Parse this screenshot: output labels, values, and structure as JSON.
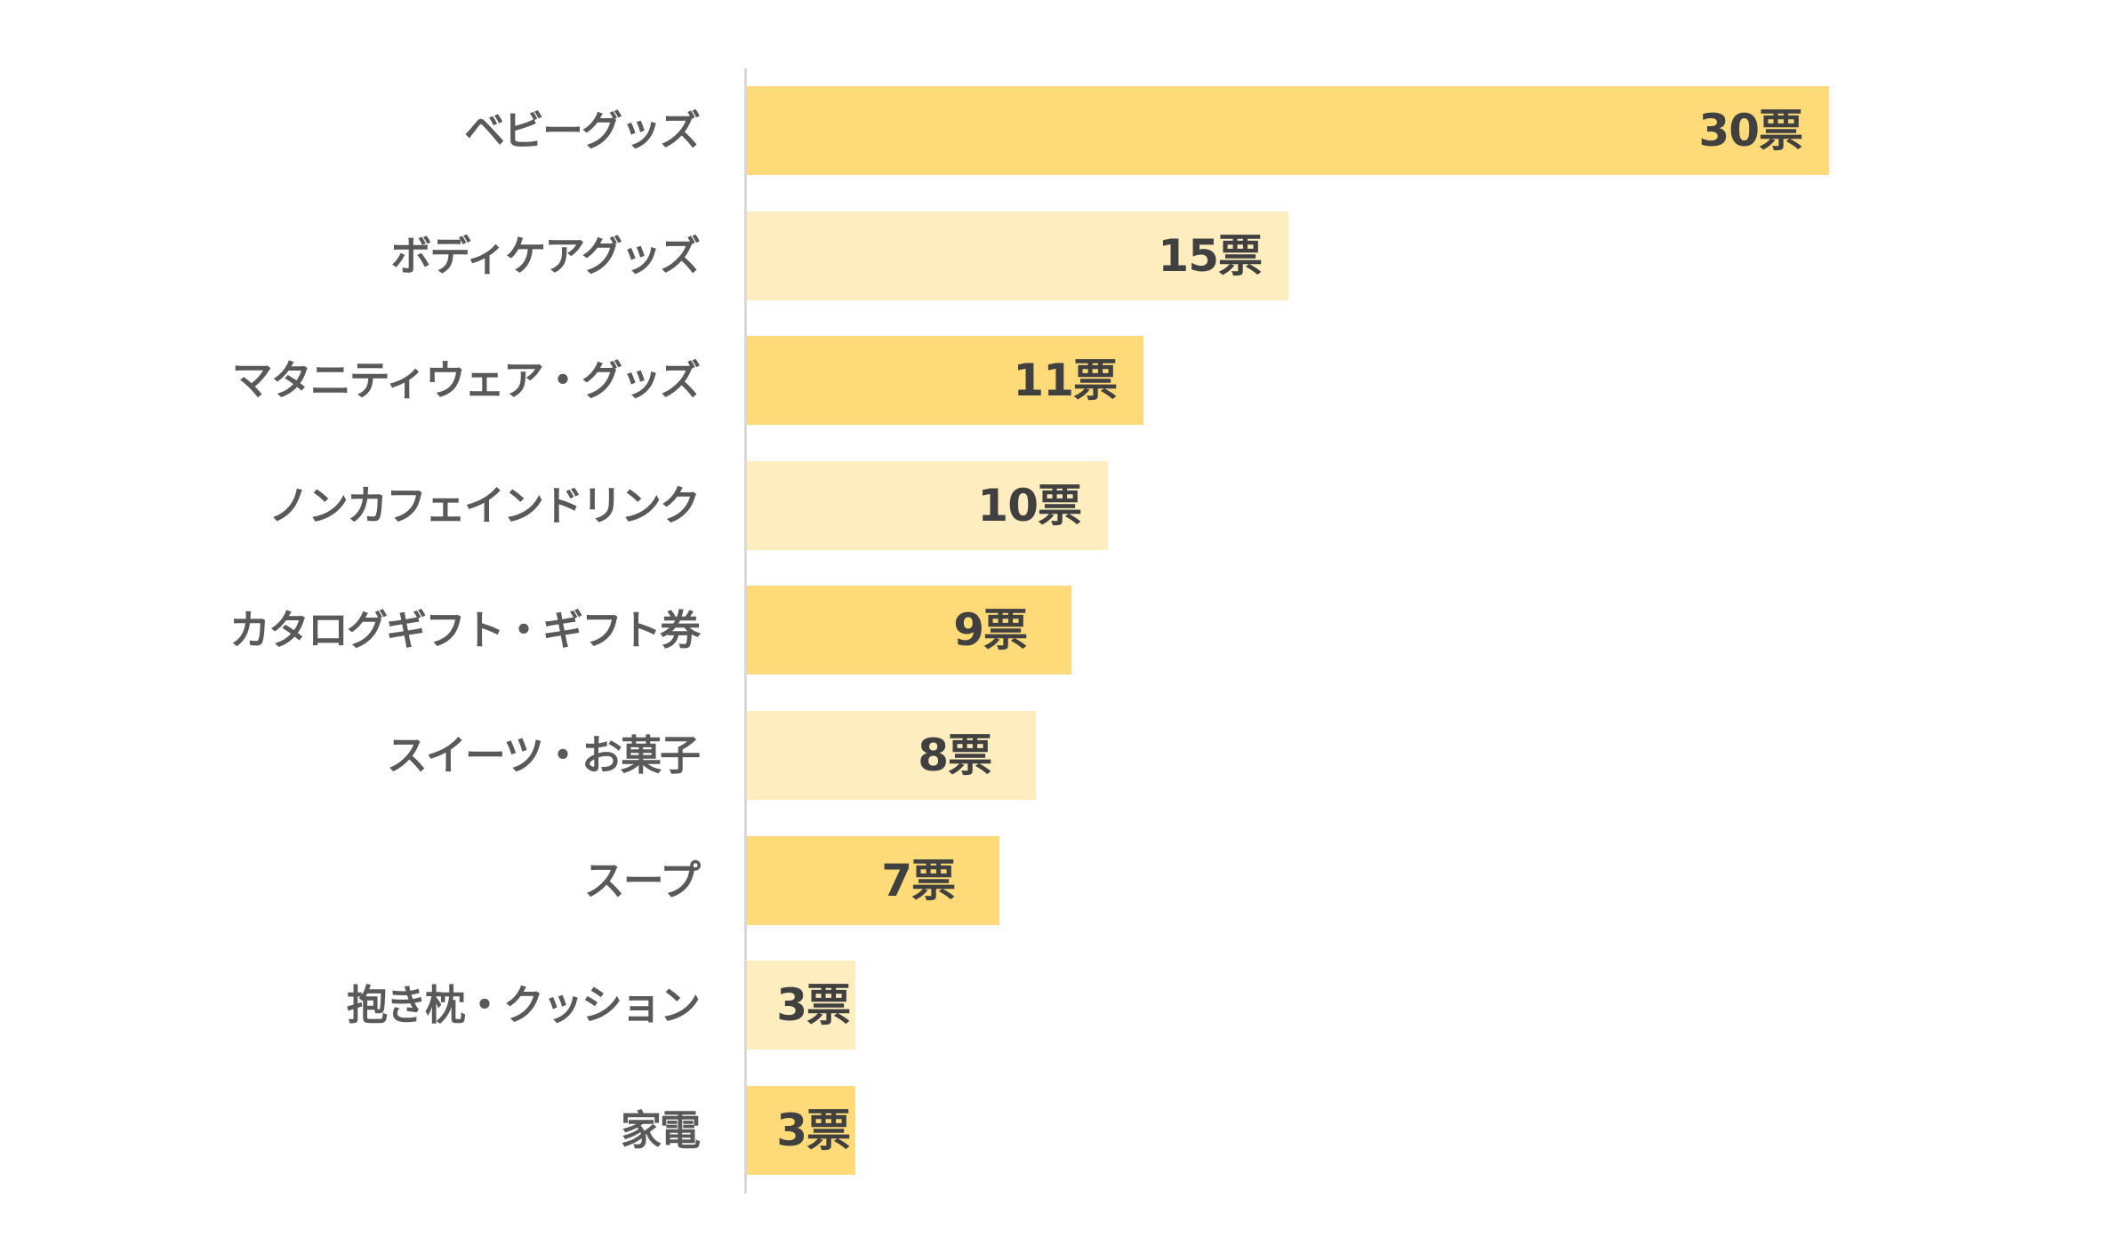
{
  "chart_data": {
    "type": "bar",
    "orientation": "horizontal",
    "title": "",
    "xlabel": "",
    "ylabel": "",
    "unit": "票",
    "categories": [
      "ベビーグッズ",
      "ボディケアグッズ",
      "マタニティウェア・グッズ",
      "ノンカフェインドリンク",
      "カタログギフト・ギフト券",
      "スイーツ・お菓子",
      "スープ",
      "抱き枕・クッション",
      "家電"
    ],
    "values": [
      30,
      15,
      11,
      10,
      9,
      8,
      7,
      3,
      3
    ],
    "value_labels": [
      "30票",
      "15票",
      "11票",
      "10票",
      "9票",
      "8票",
      "7票",
      "3票",
      "3票"
    ],
    "xlim": [
      0,
      30
    ],
    "grid": false,
    "legend": null,
    "colors": {
      "bar_dark": "#FEDA78",
      "bar_light": "#FEEDBE",
      "category_text": "#595959",
      "value_text": "#404040",
      "axis": "#D9D9D9"
    }
  }
}
